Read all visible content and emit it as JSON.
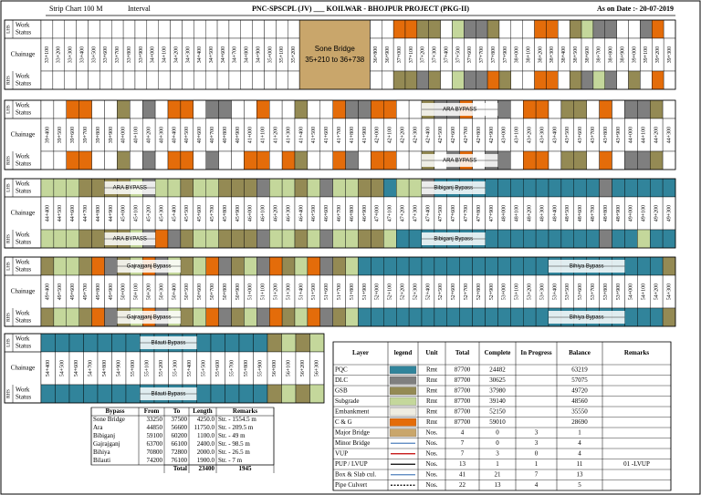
{
  "header": {
    "strip": "Strip Chart  100 M",
    "interval": "Interval",
    "title": "PNC-SPSCPL (JV)  ___  KOILWAR - BHOJPUR PROJECT (PKG-II)",
    "date": "As on Date :- 20-07-2019"
  },
  "row_labels": {
    "lhs": "LHS",
    "work": "Work",
    "status": "Status",
    "chainage": "Chainage",
    "rhs": "RHS"
  },
  "bridge": {
    "name": "Sone Bridge",
    "span": "35+210 to 36+738"
  },
  "bands": [
    {
      "chainages": [
        "33+100",
        "33+200",
        "33+300",
        "33+400",
        "33+500",
        "33+600",
        "33+700",
        "33+800",
        "33+900",
        "34+000",
        "34+100",
        "34+200",
        "34+300",
        "34+400",
        "34+500",
        "34+600",
        "34+700",
        "34+800",
        "34+900",
        "35+000",
        "35+100",
        "35+200",
        null,
        null,
        null,
        null,
        null,
        null,
        "36+800",
        "36+900",
        "37+000",
        "37+100",
        "37+200",
        "37+300",
        "37+400",
        "37+500",
        "37+600",
        "37+700",
        "37+800",
        "37+900",
        "38+000",
        "38+100",
        "38+200",
        "38+300",
        "38+400",
        "38+500",
        "38+600",
        "38+700",
        "38+800",
        "38+900",
        "39+000",
        "39+100",
        "39+200",
        "39+300"
      ],
      "lhs": "----------------------BBBBBB--5522-3112---55-2311--15-",
      "rhs": "----------------------BBBBBB--2212-31152--55-2131-2-5-"
    },
    {
      "chainages": [
        "39+400",
        "39+500",
        "39+600",
        "39+700",
        "39+800",
        "39+900",
        "40+000",
        "40+100",
        "40+200",
        "40+300",
        "40+400",
        "40+500",
        "40+600",
        "40+700",
        "40+800",
        "40+900",
        "41+000",
        "41+100",
        "41+200",
        "41+300",
        "41+400",
        "41+500",
        "41+600",
        "41+700",
        "41+800",
        "41+900",
        "42+000",
        "42+100",
        "42+200",
        "42+300",
        "42+400",
        "42+500",
        "42+600",
        "42+700",
        "42+800",
        "42+900",
        "43+000",
        "43+100",
        "43+200",
        "43+300",
        "43+400",
        "43+500",
        "43+600",
        "43+700",
        "43+800",
        "43+900",
        "44+000",
        "44+100",
        "44+200",
        "44+300"
      ],
      "lhs": "--55--2-1-55-11--5--2--51155--2115--1-55-22-5-112-",
      "rhs": "--55--2-1-55-1--55-52--51-55--2-15-11-55-22-5-112-"
    },
    {
      "chainages": [
        "44+400",
        "44+500",
        "44+600",
        "44+700",
        "44+800",
        "44+900",
        "45+000",
        "45+100",
        "45+200",
        "45+300",
        "45+400",
        "45+500",
        "45+600",
        "45+700",
        "45+800",
        "45+900",
        "46+000",
        "46+100",
        "46+200",
        "46+300",
        "46+400",
        "46+500",
        "46+600",
        "46+700",
        "46+800",
        "46+900",
        "47+000",
        "47+100",
        "47+200",
        "47+300",
        "47+400",
        "47+500",
        "47+600",
        "47+700",
        "47+800",
        "47+900",
        "48+000",
        "48+100",
        "48+200",
        "48+300",
        "48+400",
        "48+500",
        "48+600",
        "48+700",
        "48+800",
        "48+900",
        "49+000",
        "49+100",
        "49+200",
        "49+300"
      ],
      "lhs": "33322223133233222133231332203310000000000000100000",
      "rhs": "33322223151233222133231332230000000000000000100300"
    },
    {
      "chainages": [
        "49+400",
        "49+500",
        "49+600",
        "49+700",
        "49+800",
        "49+900",
        "50+000",
        "50+100",
        "50+200",
        "50+300",
        "50+400",
        "50+500",
        "50+600",
        "50+700",
        "50+800",
        "50+900",
        "51+000",
        "51+100",
        "51+200",
        "51+300",
        "51+400",
        "51+500",
        "51+600",
        "51+700",
        "51+800",
        "51+900",
        "52+000",
        "52+100",
        "52+200",
        "52+300",
        "52+400",
        "52+500",
        "52+600",
        "52+700",
        "52+800",
        "52+900",
        "53+000",
        "53+100",
        "53+200",
        "53+300",
        "53+400",
        "53+500",
        "53+600",
        "53+700",
        "53+800",
        "53+900",
        "54+000",
        "54+100",
        "54+200",
        "54+300"
      ],
      "lhs": "23325123513235123152351230000000000000000000000002",
      "rhs": "23325123513235123152351230000000000000000000000002"
    },
    {
      "chainages": [
        "54+400",
        "54+500",
        "54+600",
        "54+700",
        "54+800",
        "54+900",
        "55+000",
        "55+100",
        "55+200",
        "55+300",
        "55+400",
        "55+500",
        "55+600",
        "55+700",
        "55+800",
        "55+900",
        "56+000",
        "56+100",
        "56+200",
        "56+300"
      ],
      "lhs": "00000000000000002323",
      "rhs": "00000000000000002323"
    }
  ],
  "notes": [
    {
      "band": 1,
      "side": "lhs",
      "from": "42+400",
      "to": "42+900",
      "text": "ARA BYPASS"
    },
    {
      "band": 1,
      "side": "rhs",
      "from": "42+400",
      "to": "42+900",
      "text": "ARA BYPASS"
    },
    {
      "band": 2,
      "side": "lhs",
      "from": "44+900",
      "to": "45+200",
      "text": "ARA BYPASS"
    },
    {
      "band": 2,
      "side": "rhs",
      "from": "44+900",
      "to": "45+200",
      "text": "ARA BYPASS"
    },
    {
      "band": 2,
      "side": "lhs",
      "from": "47+400",
      "to": "47+800",
      "text": "Bibiganj Bypass"
    },
    {
      "band": 2,
      "side": "rhs",
      "from": "47+400",
      "to": "47+800",
      "text": "Bibiganj Bypass"
    },
    {
      "band": 3,
      "side": "lhs",
      "from": "50+000",
      "to": "50+400",
      "text": "Gajrajganj Bypass"
    },
    {
      "band": 3,
      "side": "rhs",
      "from": "50+000",
      "to": "50+400",
      "text": "Gajrajganj Bypass"
    },
    {
      "band": 3,
      "side": "lhs",
      "from": "53+400",
      "to": "53+900",
      "text": "Bihiya Bypass"
    },
    {
      "band": 3,
      "side": "rhs",
      "from": "53+400",
      "to": "53+900",
      "text": "Bihiya Bypass"
    },
    {
      "band": 4,
      "side": "lhs",
      "from": "55+100",
      "to": "55+400",
      "text": "Bilauti Bypass"
    },
    {
      "band": 4,
      "side": "rhs",
      "from": "55+100",
      "to": "55+400",
      "text": "Bilauti Bypass"
    }
  ],
  "bypass_table": {
    "columns": [
      "Bypass",
      "From",
      "To",
      "Length",
      "Remarks"
    ],
    "rows": [
      [
        "Sone Bridge",
        33250,
        37500,
        "4250.0",
        "Str. - 1554.5 m"
      ],
      [
        "Ara",
        44850,
        56600,
        "11750.0",
        "Str. - 209.5 m"
      ],
      [
        "Bibiganj",
        59100,
        60200,
        "1100.0",
        "Str. - 49 m"
      ],
      [
        "Gajrajganj",
        63700,
        66100,
        "2400.0",
        "Str. - 98.5 m"
      ],
      [
        "Bihiya",
        70800,
        72800,
        "2000.0",
        "Str. - 26.5 m"
      ],
      [
        "Bilauti",
        74200,
        76100,
        "1900.0",
        "Str. - 7 m"
      ]
    ],
    "total": {
      "label": "Total",
      "length": 23400,
      "remarks": 1945
    }
  },
  "layer_table": {
    "columns": [
      "Layer",
      "legend",
      "Unit",
      "Total",
      "Complete",
      "In Progress",
      "Balance",
      "Remarks"
    ],
    "rows": [
      {
        "cells": [
          "PQC",
          "Rmt",
          87700,
          24482,
          null,
          63219,
          null
        ],
        "color": "#31849b",
        "style": "fill"
      },
      {
        "cells": [
          "DLC",
          "Rmt",
          87700,
          30625,
          null,
          57075,
          null
        ],
        "color": "#7f7f7f",
        "style": "fill"
      },
      {
        "cells": [
          "GSB",
          "Rmt",
          87700,
          37980,
          null,
          49720,
          null
        ],
        "color": "#948a54",
        "style": "fill"
      },
      {
        "cells": [
          "Subgrade",
          "Rmt",
          87700,
          39140,
          null,
          48560,
          null
        ],
        "color": "#c4d79b",
        "style": "fill"
      },
      {
        "cells": [
          "Embankment",
          "Rmt",
          87700,
          52150,
          null,
          35550,
          null
        ],
        "color": "#eeece1",
        "style": "fill"
      },
      {
        "cells": [
          "C & G",
          "Rmt",
          87700,
          59010,
          null,
          28690,
          null
        ],
        "color": "#e46c0a",
        "style": "fill"
      },
      {
        "cells": [
          "Major Bridge",
          "Nos.",
          4,
          0,
          3,
          1,
          null
        ],
        "color": "#c9a66b",
        "style": "fill"
      },
      {
        "cells": [
          "Minor Bridge",
          "Nos.",
          7,
          0,
          3,
          4,
          null
        ],
        "color": "#4f81bd",
        "style": "arrow"
      },
      {
        "cells": [
          "VUP",
          "Nos.",
          7,
          3,
          0,
          4,
          null
        ],
        "color": "#c00000",
        "style": "arrow"
      },
      {
        "cells": [
          "PUP / LVUP",
          "Nos.",
          13,
          1,
          1,
          11,
          "01 -LVUP"
        ],
        "color": "#000000",
        "style": "arrow"
      },
      {
        "cells": [
          "Box & Slab cul.",
          "Nos.",
          41,
          21,
          7,
          13,
          null
        ],
        "color": "#4f81bd",
        "style": "arrow"
      },
      {
        "cells": [
          "Pipe Culvert",
          "Nos.",
          22,
          13,
          4,
          5,
          null
        ],
        "color": "#000000",
        "style": "dashed"
      }
    ]
  }
}
